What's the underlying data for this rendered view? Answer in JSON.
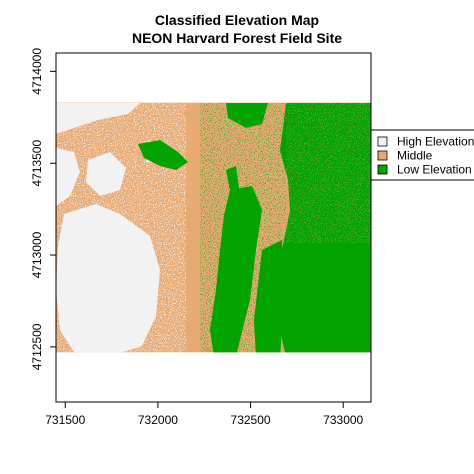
{
  "chart_data": {
    "type": "heatmap",
    "title": "Classified Elevation Map",
    "subtitle": "NEON Harvard Forest Field Site",
    "xlabel": "",
    "ylabel": "",
    "xlim": [
      731450,
      733150
    ],
    "ylim": [
      4712200,
      4714100
    ],
    "raster_extent": {
      "x": [
        731450,
        733150
      ],
      "y": [
        4712470,
        4713830
      ]
    },
    "x_ticks": [
      731500,
      732000,
      732500,
      733000
    ],
    "y_ticks": [
      4712500,
      4713000,
      4713500,
      4714000
    ],
    "x_tick_labels": [
      "731500",
      "732000",
      "732500",
      "733000"
    ],
    "y_tick_labels": [
      "4712500",
      "4713000",
      "4713500",
      "4714000"
    ],
    "grid": false,
    "legend_placement": "right",
    "classes": [
      {
        "name": "High Elevation",
        "color": "#f2f2f2"
      },
      {
        "name": "Middle",
        "color": "#e8aa73"
      },
      {
        "name": "Low Elevation",
        "color": "#00a300"
      }
    ]
  }
}
